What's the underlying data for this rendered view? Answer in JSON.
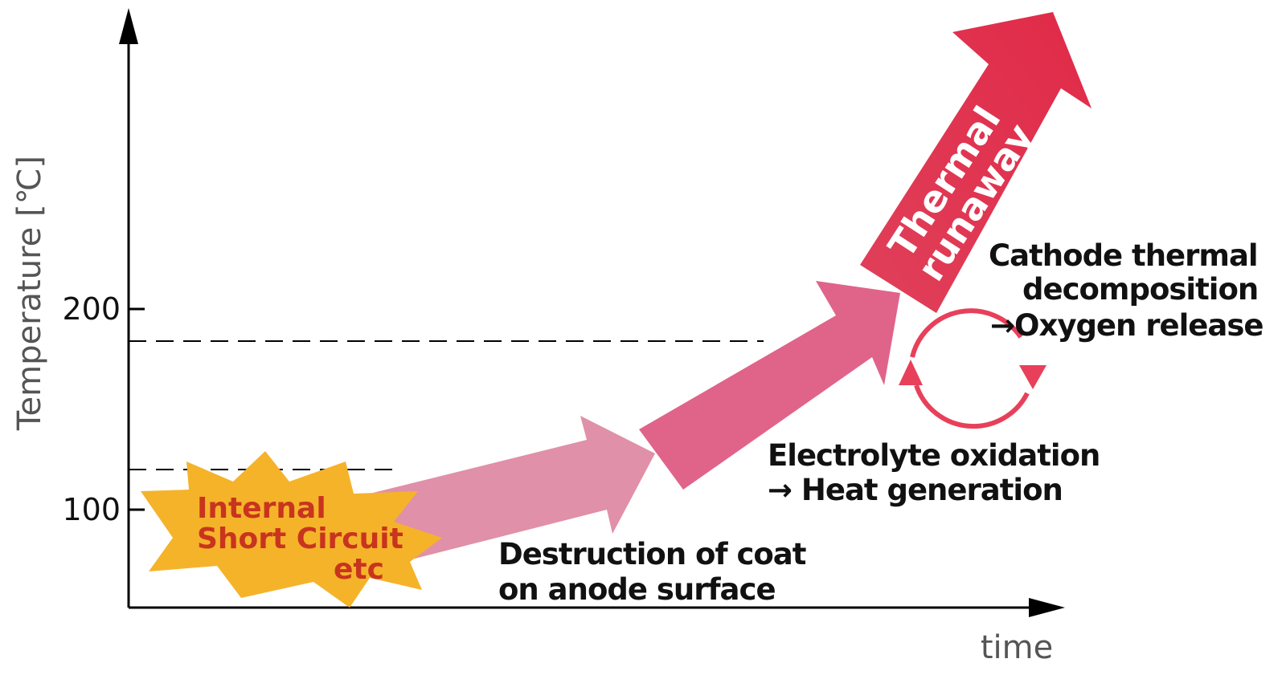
{
  "axes": {
    "y_label": "Temperature [℃]",
    "x_label": "time",
    "ticks": [
      "200",
      "100"
    ]
  },
  "trigger": {
    "lines": [
      "Internal",
      "Short Circuit",
      "etc"
    ]
  },
  "stages": [
    {
      "lines": [
        "Destruction of coat",
        "on anode surface"
      ]
    },
    {
      "lines": [
        "Electrolyte oxidation",
        "→ Heat generation"
      ]
    },
    {
      "lines": [
        "Cathode thermal",
        "decomposition",
        "→Oxygen release"
      ]
    }
  ],
  "result": {
    "lines": [
      "Thermal",
      "runaway"
    ]
  }
}
